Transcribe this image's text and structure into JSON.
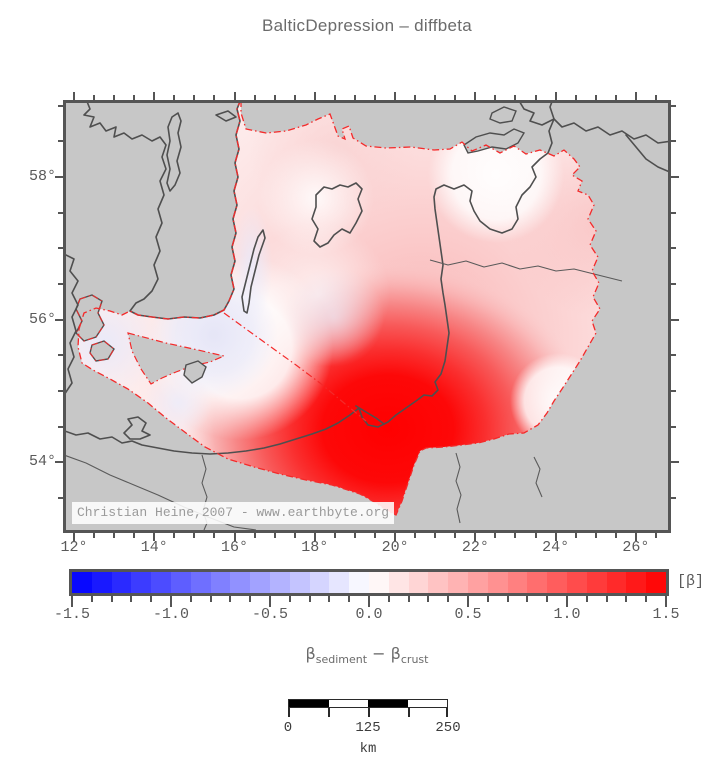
{
  "title": "BalticDepression – diffbeta",
  "map": {
    "watermark": "Christian Heine,2007 - www.earthbyte.org",
    "lon_axis": {
      "min": 11.8,
      "max": 26.8,
      "minor_step": 0.5,
      "major_values": [
        12,
        14,
        16,
        18,
        20,
        22,
        24,
        26
      ],
      "major_labels": [
        "12°",
        "14°",
        "16°",
        "18°",
        "20°",
        "22°",
        "24°",
        "26°"
      ]
    },
    "lat_axis": {
      "min": 53.05,
      "max": 59.04,
      "minor_step": 0.5,
      "major_values": [
        58,
        56,
        54
      ],
      "major_labels": [
        "58°",
        "56°",
        "54°"
      ]
    },
    "land_color": "#c7c7c7",
    "coast_color": "#4f4f4f",
    "region_outline_color": "#f42a2a",
    "hotspot_color": "#ff0000"
  },
  "colorbar": {
    "min": -1.5,
    "max": 1.5,
    "segment_step": 0.1,
    "minor_tick_step": 0.1,
    "major_tick_step": 0.5,
    "major_labels": [
      "-1.5",
      "-1.0",
      "-0.5",
      "0.0",
      "0.5",
      "1.0",
      "1.5"
    ],
    "major_values": [
      -1.5,
      -1.0,
      -0.5,
      0.0,
      0.5,
      1.0,
      1.5
    ],
    "unit": "[β]",
    "left_color": "#0000ff",
    "center_color": "#ffffff",
    "right_color": "#ff0000"
  },
  "subtitle": {
    "beta_left": "β",
    "sub_left": "sediment",
    "operator": "−",
    "beta_right": "β",
    "sub_right": "crust"
  },
  "scalebar": {
    "tick_labels": [
      "0",
      "125",
      "250"
    ],
    "unit": "km",
    "n_segments": 4,
    "fill_pattern": [
      "#000000",
      "#ffffff",
      "#000000",
      "#ffffff"
    ]
  }
}
